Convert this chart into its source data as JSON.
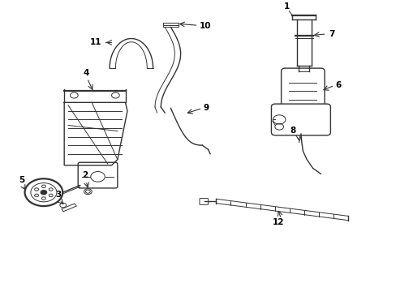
{
  "title": "",
  "bg_color": "#ffffff",
  "line_color": "#333333",
  "label_color": "#000000",
  "fig_width": 4.89,
  "fig_height": 3.6,
  "dpi": 100
}
